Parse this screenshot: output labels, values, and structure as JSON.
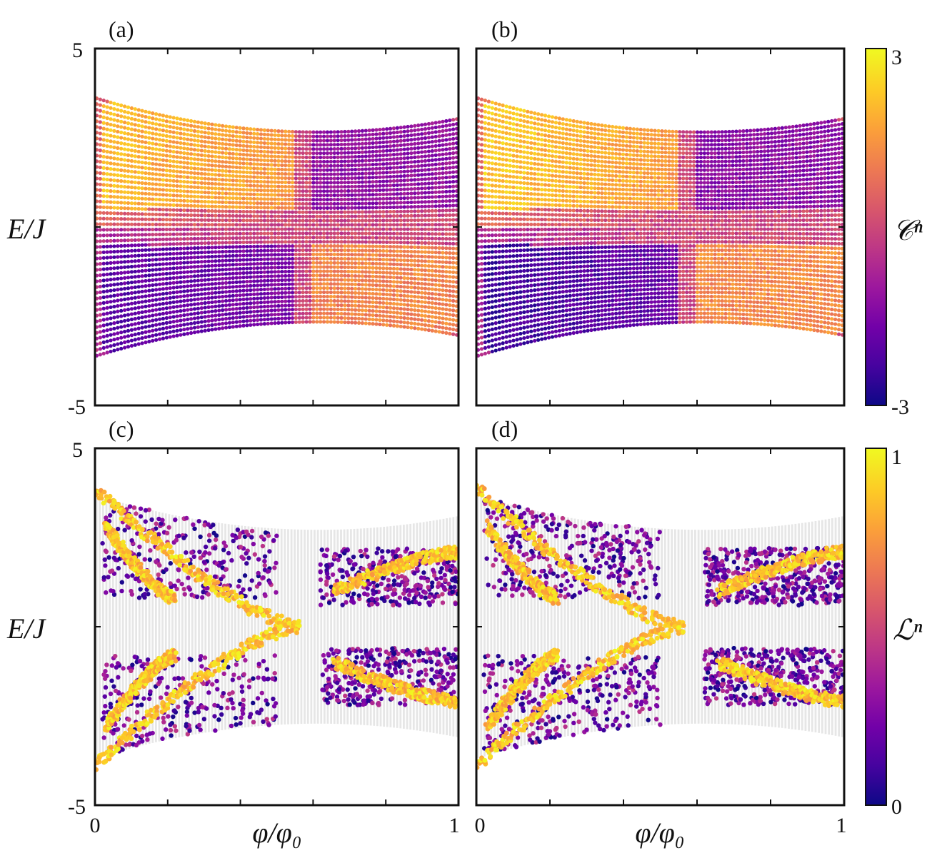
{
  "chart_data": [
    {
      "type": "scatter",
      "panel": "(a)",
      "xlim": [
        0,
        1
      ],
      "ylim": [
        -5,
        5
      ],
      "x_ticks": [
        "0",
        "",
        "",
        "",
        "",
        "",
        "",
        "",
        "",
        "",
        "1"
      ],
      "y_ticks": [
        "5",
        "",
        "-5"
      ],
      "xlabel": "",
      "ylabel": "E/J",
      "color_quantity": "C^n",
      "color_range": [
        -3,
        3
      ],
      "regions": [
        {
          "x": [
            0.02,
            0.55
          ],
          "y": [
            0.5,
            3.5
          ],
          "value": 1.5
        },
        {
          "x": [
            0.02,
            0.55
          ],
          "y": [
            -3.5,
            -0.5
          ],
          "value": -1.5
        },
        {
          "x": [
            0.6,
            1.0
          ],
          "y": [
            0.5,
            3.0
          ],
          "value": -1.2
        },
        {
          "x": [
            0.6,
            1.0
          ],
          "y": [
            -3.0,
            -0.5
          ],
          "value": 1.2
        }
      ]
    },
    {
      "type": "scatter",
      "panel": "(b)",
      "xlim": [
        0,
        1
      ],
      "ylim": [
        -5,
        5
      ],
      "x_ticks": [
        "",
        "",
        "",
        "",
        "",
        "",
        "",
        "",
        "",
        "",
        ""
      ],
      "y_ticks": [
        "",
        "",
        ""
      ],
      "color_quantity": "C^n",
      "color_range": [
        -3,
        3
      ],
      "regions": [
        {
          "x": [
            0.02,
            0.55
          ],
          "y": [
            0.5,
            3.5
          ],
          "value": 1.6
        },
        {
          "x": [
            0.02,
            0.55
          ],
          "y": [
            -3.5,
            -0.5
          ],
          "value": -1.8
        },
        {
          "x": [
            0.6,
            1.0
          ],
          "y": [
            0.5,
            3.0
          ],
          "value": -1.3
        },
        {
          "x": [
            0.6,
            1.0
          ],
          "y": [
            -3.0,
            -0.5
          ],
          "value": 1.3
        }
      ]
    },
    {
      "type": "scatter",
      "panel": "(c)",
      "xlim": [
        0,
        1
      ],
      "ylim": [
        -5,
        5
      ],
      "x_ticks": [
        "0",
        "",
        "",
        "",
        "",
        "",
        "",
        "",
        "",
        "",
        "1"
      ],
      "y_ticks": [
        "5",
        "",
        "-5"
      ],
      "xlabel": "φ/φ0",
      "ylabel": "E/J",
      "color_quantity": "L^n",
      "color_range": [
        0,
        1
      ]
    },
    {
      "type": "scatter",
      "panel": "(d)",
      "xlim": [
        0,
        1
      ],
      "ylim": [
        -5,
        5
      ],
      "x_ticks": [
        "0",
        "",
        "",
        "",
        "",
        "",
        "",
        "",
        "",
        "",
        "1"
      ],
      "y_ticks": [
        "",
        "",
        ""
      ],
      "xlabel": "φ/φ0",
      "color_quantity": "L^n",
      "color_range": [
        0,
        1
      ]
    }
  ],
  "colorbars": [
    {
      "label": "𝒞ⁿ",
      "max": "3",
      "min": "-3"
    },
    {
      "label": "ℒⁿ",
      "max": "1",
      "min": "0"
    }
  ],
  "panel_labels": [
    "(a)",
    "(b)",
    "(c)",
    "(d)"
  ],
  "axis_labels": {
    "y_top": "E/J",
    "y_bottom": "E/J",
    "x_left": "φ/φ₀",
    "x_right": "φ/φ₀"
  },
  "tick_labels": {
    "a_y_top": "5",
    "a_y_bottom": "-5",
    "c_y_top": "5",
    "c_y_bottom": "-5",
    "c_x_left": "0",
    "c_x_right": "1",
    "d_x_left": "0",
    "d_x_right": "1"
  },
  "colors": {
    "colormap": [
      "#0d0887",
      "#46039f",
      "#7201a8",
      "#9c179e",
      "#bd3786",
      "#d8576b",
      "#ed7953",
      "#fb9f3a",
      "#fdca26",
      "#f0f921"
    ],
    "background_band": "#e6e6e6"
  }
}
